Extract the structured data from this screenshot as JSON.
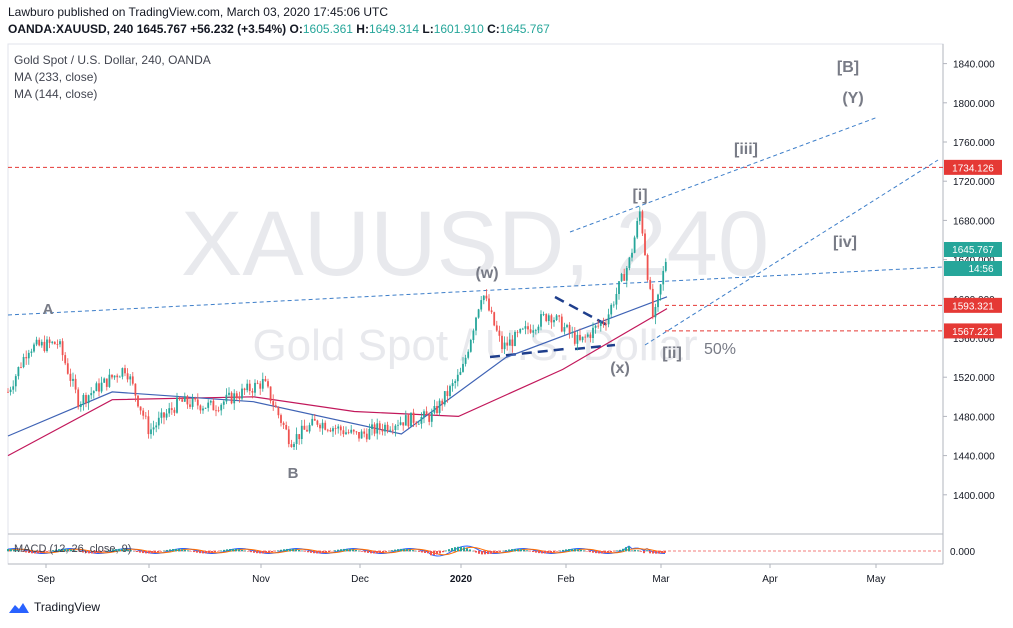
{
  "header": {
    "author": "Lawburo",
    "published_text": "published on TradingView.com, March 03, 2020 17:45:06 UTC",
    "symbol": "OANDA:XAUUSD, 240",
    "last": "1645.767",
    "change": "+56.232 (+3.54%)",
    "o_label": "O:",
    "o_value": "1605.361",
    "h_label": "H:",
    "h_value": "1649.314",
    "l_label": "L:",
    "l_value": "1601.910",
    "c_label": "C:",
    "c_value": "1645.767"
  },
  "legend": {
    "title": "Gold Spot / U.S. Dollar, 240, OANDA",
    "ma1": "MA (233, close)",
    "ma2": "MA (144, close)",
    "macd": "MACD (12, 26, close, 9)"
  },
  "watermark": {
    "symbol": "XAUUSD, 240",
    "name": "Gold Spot / U.S. Dollar"
  },
  "footer": {
    "brand": "TradingView"
  },
  "colors": {
    "up": "#26a69a",
    "down": "#ef5350",
    "ma233": "#e57373",
    "ma144": "#5c7fbf",
    "trendline": "#3d7ec9",
    "hline": "#e53935",
    "wave_label": "#787b86",
    "price_tag_current": "#26a69a",
    "price_tag_red": "#e53935"
  },
  "chart_data": {
    "type": "candlestick",
    "timeframe": "240",
    "x_tick_labels": [
      "Sep",
      "Oct",
      "Nov",
      "Dec",
      "2020",
      "Feb",
      "Mar",
      "Apr",
      "May"
    ],
    "y_tick_labels": [
      "1840.000",
      "1800.000",
      "1760.000",
      "1720.000",
      "1680.000",
      "1640.000",
      "1600.000",
      "1560.000",
      "1520.000",
      "1480.000",
      "1440.000",
      "1400.000"
    ],
    "ylim": [
      1360,
      1860
    ],
    "price_series_approx": [
      {
        "t": "Aug 20",
        "p": 1505
      },
      {
        "t": "Aug 26",
        "p": 1550
      },
      {
        "t": "Sep 04",
        "p": 1555
      },
      {
        "t": "Sep 10",
        "p": 1495
      },
      {
        "t": "Sep 24",
        "p": 1530
      },
      {
        "t": "Oct 01",
        "p": 1465
      },
      {
        "t": "Oct 10",
        "p": 1495
      },
      {
        "t": "Oct 20",
        "p": 1490
      },
      {
        "t": "Nov 04",
        "p": 1515
      },
      {
        "t": "Nov 12",
        "p": 1455
      },
      {
        "t": "Nov 20",
        "p": 1475
      },
      {
        "t": "Dec 02",
        "p": 1460
      },
      {
        "t": "Dec 14",
        "p": 1475
      },
      {
        "t": "Dec 24",
        "p": 1480
      },
      {
        "t": "Jan 02",
        "p": 1525
      },
      {
        "t": "Jan 08",
        "p": 1608
      },
      {
        "t": "Jan 14",
        "p": 1550
      },
      {
        "t": "Jan 28",
        "p": 1585
      },
      {
        "t": "Feb 06",
        "p": 1555
      },
      {
        "t": "Feb 14",
        "p": 1580
      },
      {
        "t": "Feb 21",
        "p": 1640
      },
      {
        "t": "Feb 24",
        "p": 1690
      },
      {
        "t": "Feb 28",
        "p": 1575
      },
      {
        "t": "Mar 03",
        "p": 1646
      }
    ],
    "ma_233_approx": [
      {
        "t": "Aug 20",
        "p": 1440
      },
      {
        "t": "Sep 20",
        "p": 1497
      },
      {
        "t": "Nov 01",
        "p": 1500
      },
      {
        "t": "Dec 01",
        "p": 1485
      },
      {
        "t": "Jan 01",
        "p": 1480
      },
      {
        "t": "Feb 01",
        "p": 1528
      },
      {
        "t": "Mar 03",
        "p": 1590
      }
    ],
    "ma_144_approx": [
      {
        "t": "Aug 20",
        "p": 1460
      },
      {
        "t": "Sep 20",
        "p": 1505
      },
      {
        "t": "Nov 01",
        "p": 1495
      },
      {
        "t": "Dec 15",
        "p": 1462
      },
      {
        "t": "Jan 15",
        "p": 1540
      },
      {
        "t": "Feb 15",
        "p": 1580
      },
      {
        "t": "Mar 03",
        "p": 1602
      }
    ],
    "horizontal_levels": [
      {
        "value": 1734.126,
        "label": "1734.126"
      },
      {
        "value": 1593.321,
        "label": "1593.321"
      },
      {
        "value": 1567.221,
        "label": "1567.221"
      }
    ],
    "current_price": {
      "value": 1645.767,
      "label": "1645.767",
      "countdown": "14:56"
    },
    "wave_labels": [
      "A",
      "B",
      "(w)",
      "(x)",
      "[i]",
      "[ii]",
      "[iii]",
      "[iv]",
      "(Y)",
      "[B]"
    ],
    "annotation_pct": "50%",
    "macd_tick_label": "0.000"
  }
}
